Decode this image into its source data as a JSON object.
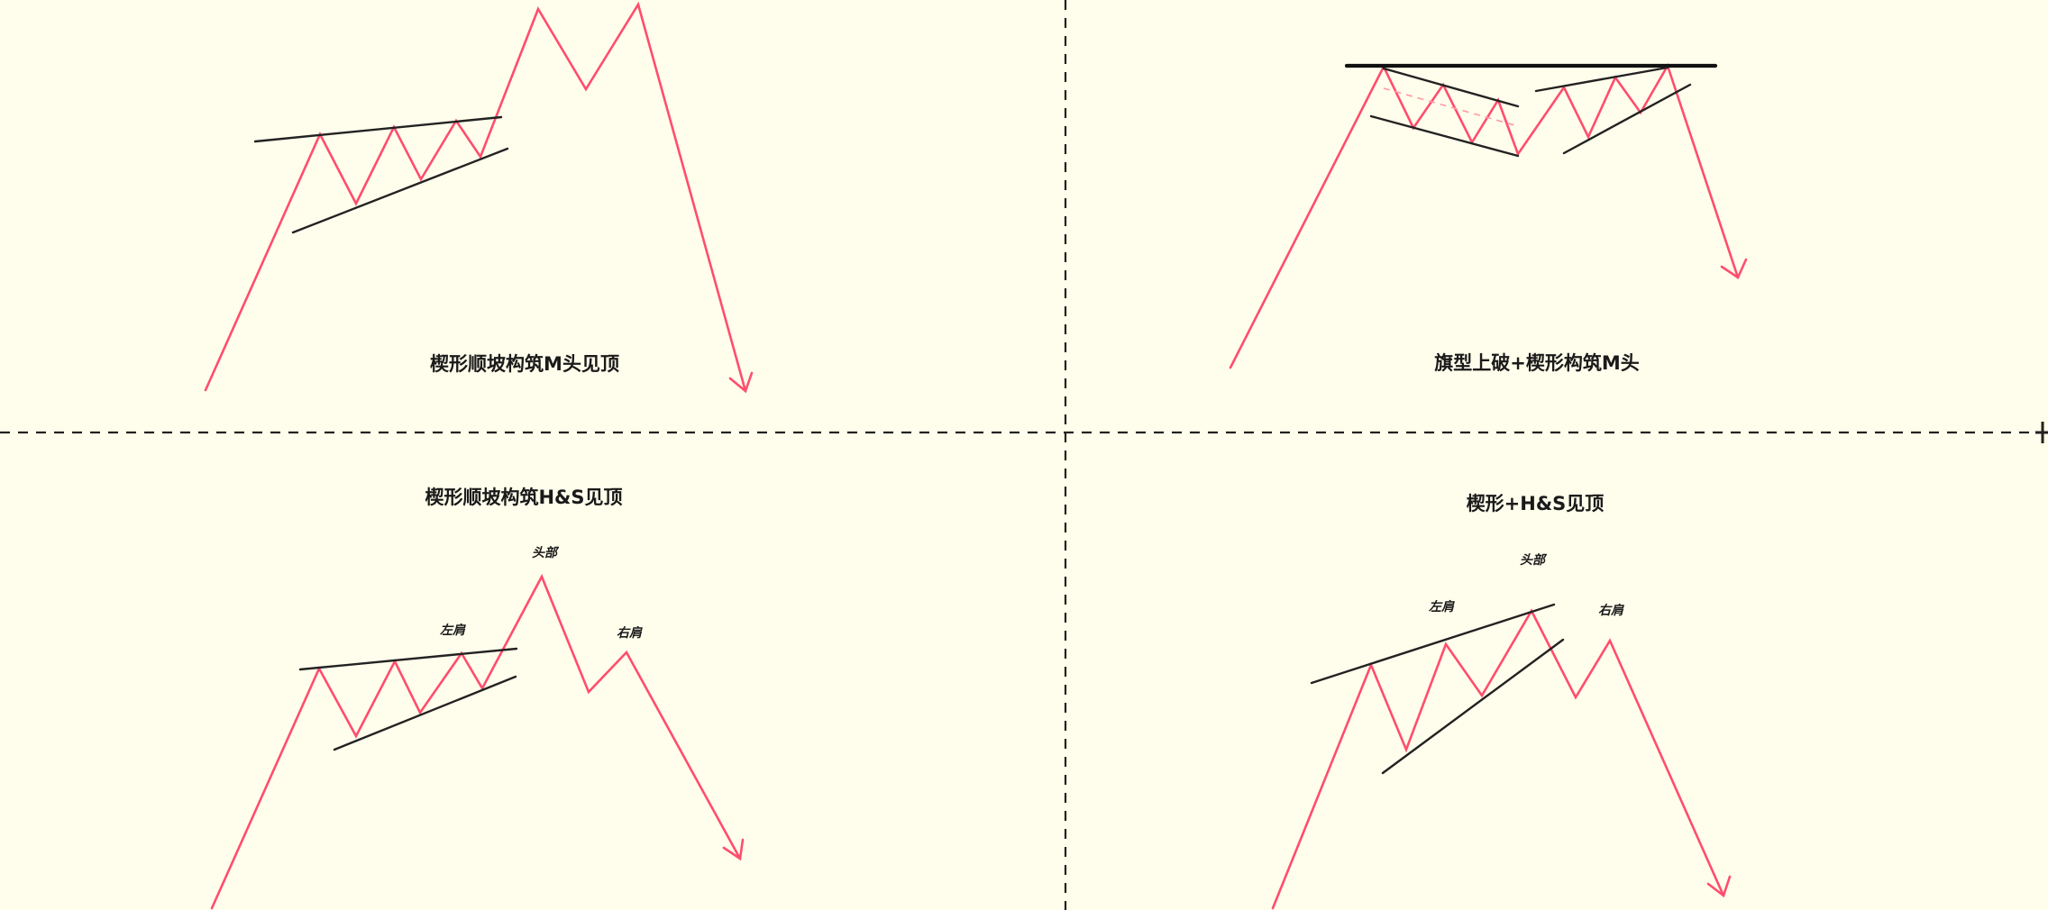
{
  "panels": [
    {
      "title": "楔形顺坡构筑M头见顶"
    },
    {
      "title": "旗型上破+楔形构筑M头"
    },
    {
      "title": "楔形顺坡构筑H&S见顶",
      "labels": {
        "left_shoulder": "左肩",
        "head": "头部",
        "right_shoulder": "右肩"
      }
    },
    {
      "title": "楔形+H&S见顶",
      "labels": {
        "left_shoulder": "左肩",
        "head": "头部",
        "right_shoulder": "右肩"
      }
    }
  ],
  "colors": {
    "background": "#fffdeb",
    "price_line": "#ff4d6d",
    "trend_line": "#222222",
    "divider": "#222222"
  }
}
